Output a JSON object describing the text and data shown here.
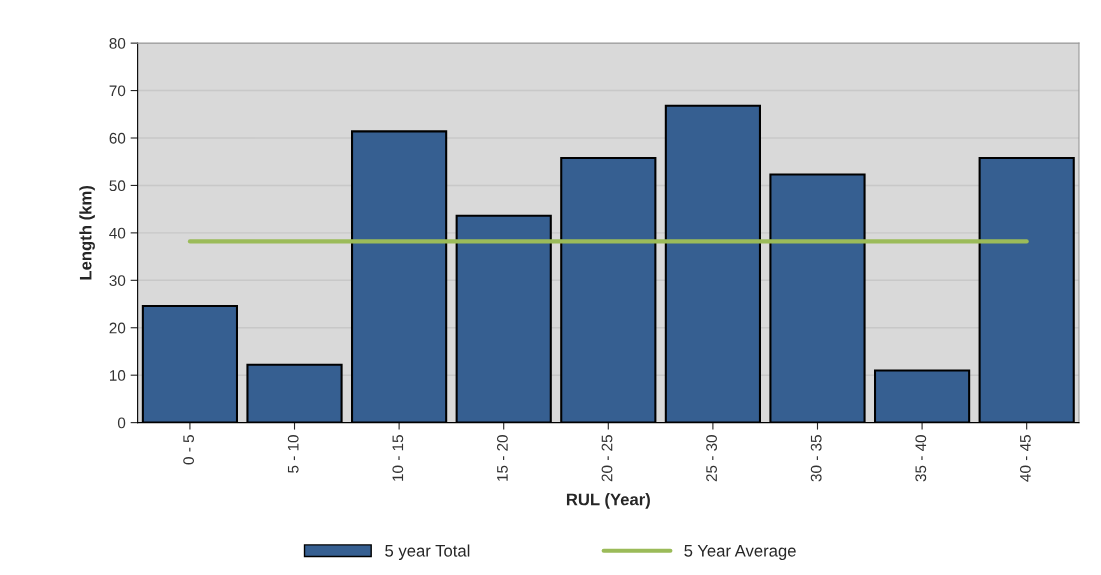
{
  "chart_data": {
    "type": "bar",
    "xlabel": "RUL (Year)",
    "ylabel": "Length (km)",
    "categories": [
      "0 - 5",
      "5 - 10",
      "10 - 15",
      "15 - 20",
      "20 - 25",
      "25 - 30",
      "30 - 35",
      "35 - 40",
      "40 - 45"
    ],
    "series": [
      {
        "name": "5 year Total",
        "color": "#365f91",
        "values": [
          24.6,
          12.2,
          61.4,
          43.6,
          55.8,
          66.8,
          52.3,
          11.0,
          55.8
        ]
      },
      {
        "name": "5 Year Average",
        "type": "line",
        "color": "#9bbb59",
        "values": [
          38.2,
          38.2,
          38.2,
          38.2,
          38.2,
          38.2,
          38.2,
          38.2,
          38.2
        ]
      }
    ],
    "ylim": [
      0,
      80
    ],
    "yticks": [
      0,
      10,
      20,
      30,
      40,
      50,
      60,
      70,
      80
    ],
    "grid": "y",
    "legend": "bottom",
    "marker": "none",
    "line_style": "solid"
  }
}
